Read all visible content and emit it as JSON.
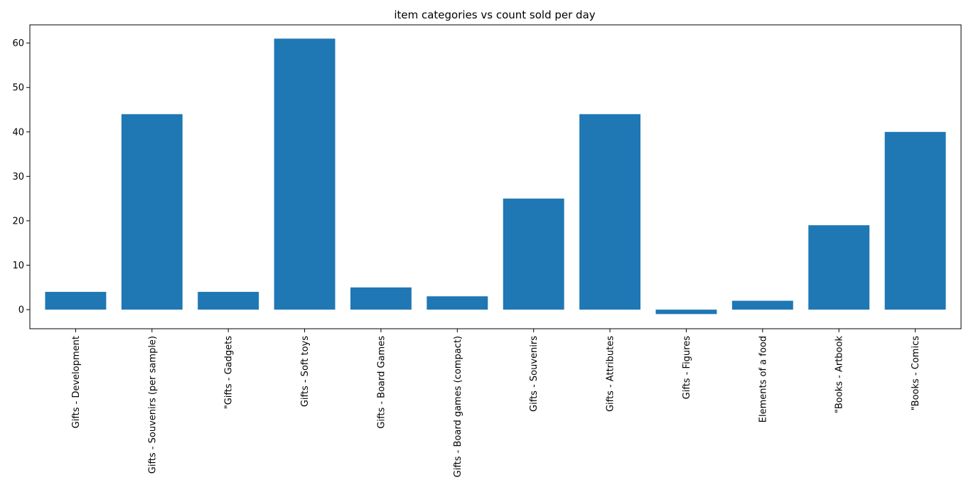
{
  "chart_data": {
    "type": "bar",
    "title": "item categories vs count sold per day",
    "xlabel": "",
    "ylabel": "",
    "categories": [
      "Gifts - Development",
      "Gifts - Souvenirs (per sample)",
      "\"Gifts - Gadgets",
      "Gifts - Soft toys",
      "Gifts - Board Games",
      "Gifts - Board games (compact)",
      "Gifts - Souvenirs",
      "Gifts - Attributes",
      "Gifts - Figures",
      "Elements of a food",
      "\"Books - Artbook",
      "\"Books - Comics"
    ],
    "values": [
      4,
      44,
      4,
      61,
      5,
      3,
      25,
      44,
      -1,
      2,
      19,
      40
    ],
    "ylim": [
      -4.3,
      64.1
    ],
    "yticks": [
      0,
      10,
      20,
      30,
      40,
      50,
      60
    ],
    "grid": false,
    "bar_color": "#1f77b4",
    "x_tick_rotation_deg": 90
  }
}
